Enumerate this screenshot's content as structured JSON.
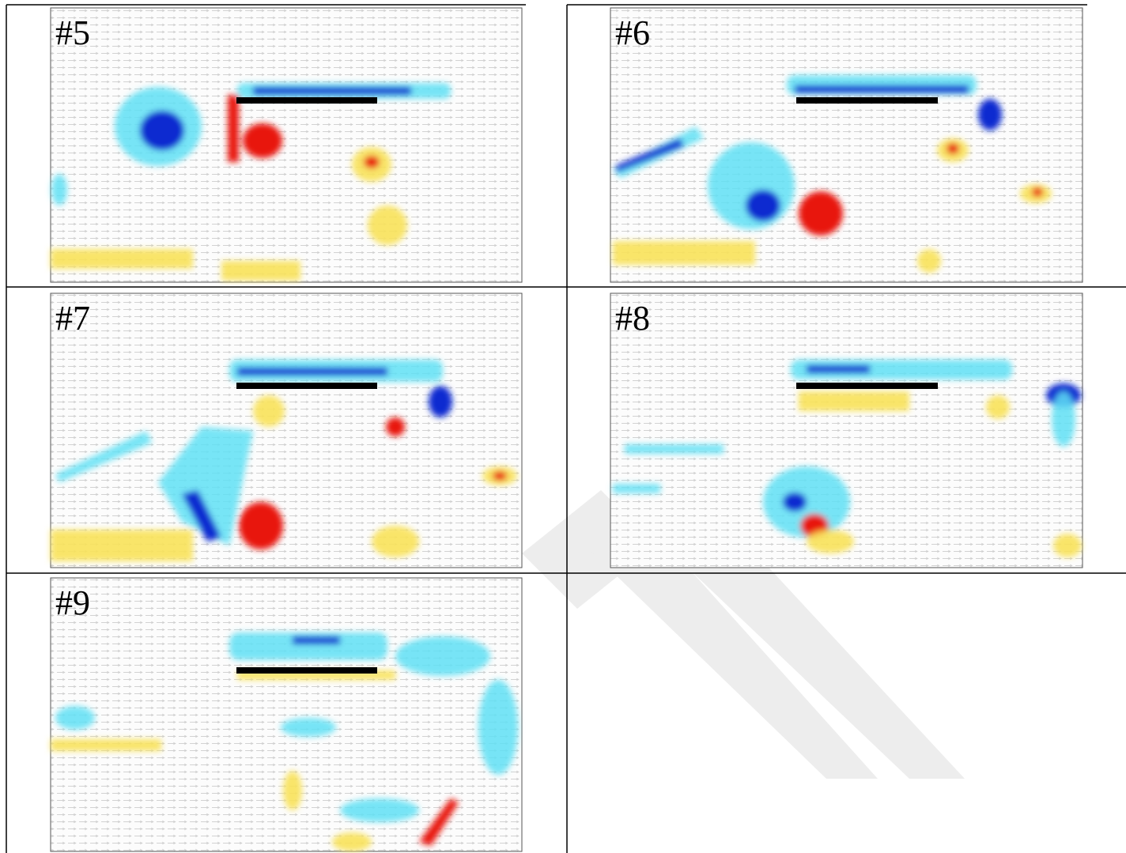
{
  "panels": [
    {
      "label": "#5"
    },
    {
      "label": "#6"
    },
    {
      "label": "#7"
    },
    {
      "label": "#8"
    },
    {
      "label": "#9"
    }
  ]
}
